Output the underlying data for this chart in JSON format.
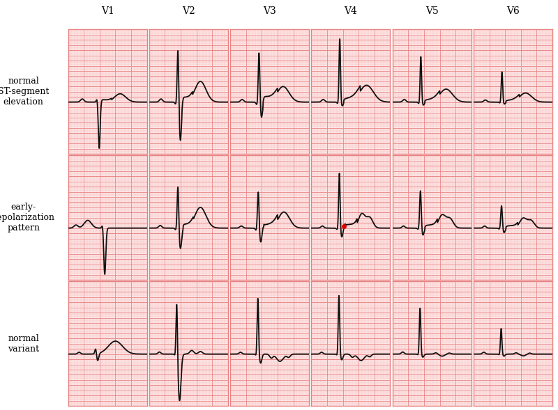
{
  "title_fontsize": 10,
  "label_fontsize": 9,
  "col_labels": [
    "V1",
    "V2",
    "V3",
    "V4",
    "V5",
    "V6"
  ],
  "row_labels": [
    "normal\nST-segment\nelevation",
    "early-\nrepolarization\npattern",
    "normal\nvariant"
  ],
  "grid_major_color": "#e88080",
  "grid_minor_color": "#f8c0c0",
  "bg_color": "#fde8e8",
  "line_color": "#111111",
  "line_width": 1.3,
  "red_dot_color": "#dd0000"
}
